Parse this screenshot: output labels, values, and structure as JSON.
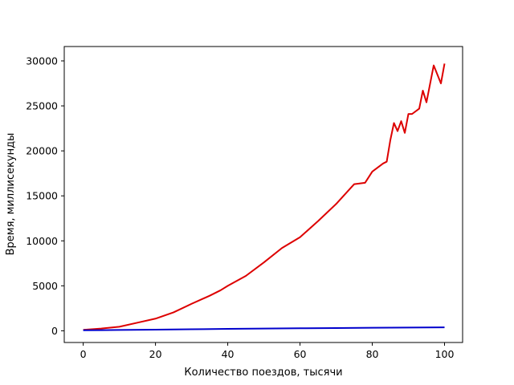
{
  "chart_data": {
    "type": "line",
    "title": "",
    "xlabel": "Количество поездов, тысячи",
    "ylabel": "Время, миллисекунды",
    "xlim": [
      -5.25,
      105
    ],
    "ylim": [
      -1300,
      31600
    ],
    "xticks": [
      0,
      20,
      40,
      60,
      80,
      100
    ],
    "yticks": [
      0,
      5000,
      10000,
      15000,
      20000,
      25000,
      30000
    ],
    "grid": false,
    "legend": "none",
    "series": [
      {
        "color": "#dd0000",
        "x": [
          0,
          5,
          10,
          15,
          20,
          25,
          30,
          35,
          38,
          40,
          45,
          50,
          55,
          60,
          65,
          70,
          75,
          78,
          80,
          83,
          84,
          85,
          86,
          87,
          88,
          89,
          90,
          91,
          93,
          94,
          95,
          97,
          99,
          100
        ],
        "y": [
          100,
          250,
          450,
          900,
          1350,
          2050,
          3000,
          3900,
          4500,
          5000,
          6100,
          7600,
          9200,
          10400,
          12200,
          14100,
          16300,
          16450,
          17700,
          18600,
          18800,
          21200,
          23100,
          22200,
          23300,
          22000,
          24100,
          24100,
          24700,
          26700,
          25400,
          29500,
          27500,
          29700
        ]
      },
      {
        "color": "#0000cc",
        "x": [
          0,
          10,
          20,
          30,
          40,
          50,
          60,
          70,
          80,
          90,
          100
        ],
        "y": [
          60,
          90,
          130,
          170,
          210,
          250,
          280,
          310,
          340,
          360,
          380
        ]
      }
    ]
  }
}
